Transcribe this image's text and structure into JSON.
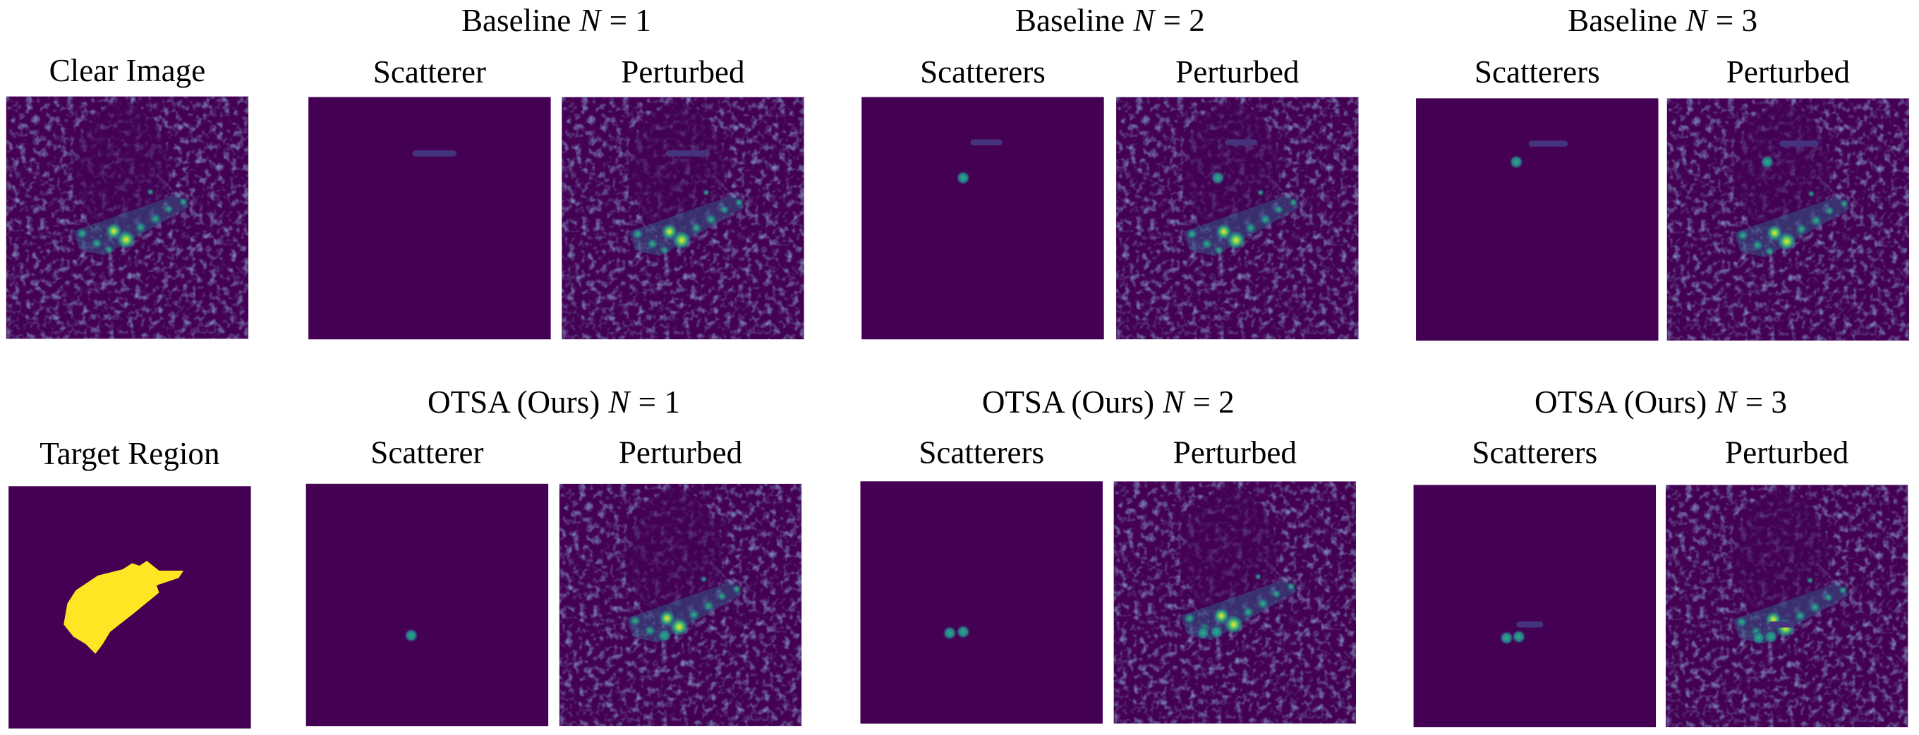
{
  "left_column": {
    "top_label": "Clear Image",
    "bottom_label": "Target Region"
  },
  "rows": [
    {
      "method": "Baseline",
      "groups": [
        {
          "variable": "N",
          "equals": "= 1",
          "left_label": "Scatterer",
          "right_label": "Perturbed"
        },
        {
          "variable": "N",
          "equals": "= 2",
          "left_label": "Scatterers",
          "right_label": "Perturbed"
        },
        {
          "variable": "N",
          "equals": "= 3",
          "left_label": "Scatterers",
          "right_label": "Perturbed"
        }
      ]
    },
    {
      "method": "OTSA (Ours)",
      "groups": [
        {
          "variable": "N",
          "equals": "= 1",
          "left_label": "Scatterer",
          "right_label": "Perturbed"
        },
        {
          "variable": "N",
          "equals": "= 2",
          "left_label": "Scatterers",
          "right_label": "Perturbed"
        },
        {
          "variable": "N",
          "equals": "= 3",
          "left_label": "Scatterers",
          "right_label": "Perturbed"
        }
      ]
    }
  ]
}
